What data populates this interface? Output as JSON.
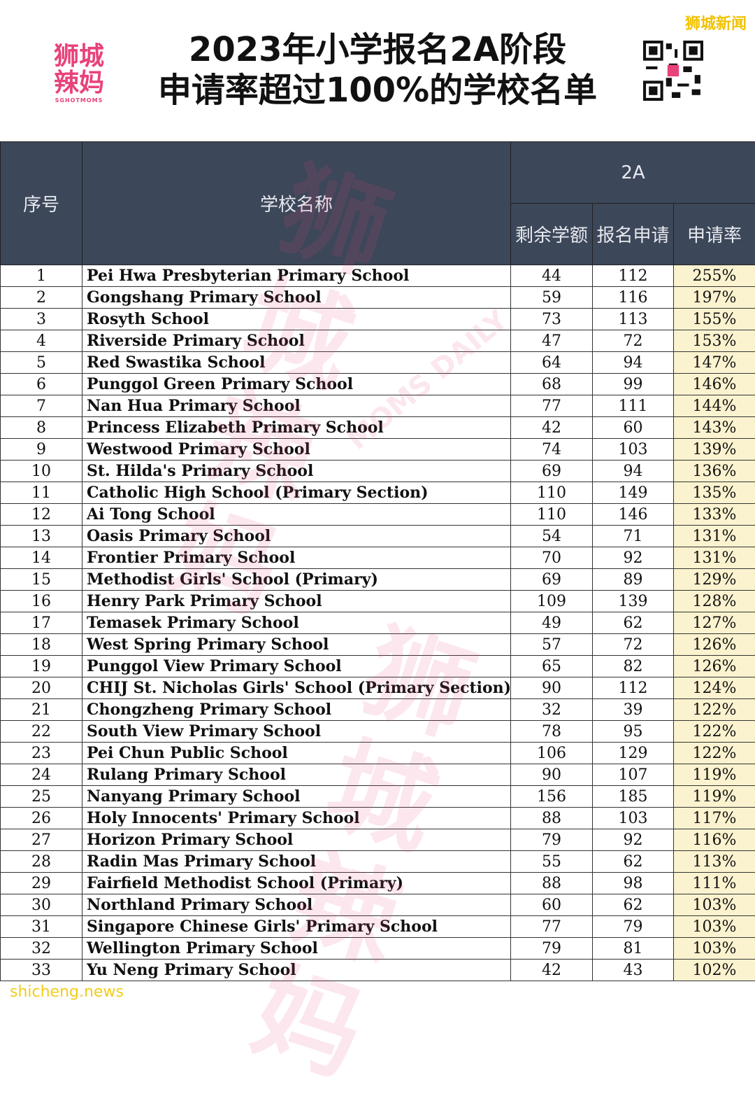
{
  "header": {
    "title_line1": "2023年小学报名2A阶段",
    "title_line2": "申请率超过100%的学校名单",
    "logo_line1": "狮城",
    "logo_line2": "辣妈",
    "logo_sub": "SGHOTMOMS",
    "corner_mark": "狮城新闻"
  },
  "table": {
    "columns": {
      "no": "序号",
      "name": "学校名称",
      "group": "2A",
      "quota": "剩余学额",
      "applicants": "报名申请",
      "rate": "申请率"
    },
    "rows": [
      [
        "1",
        "Pei Hwa Presbyterian Primary School",
        "44",
        "112",
        "255%"
      ],
      [
        "2",
        "Gongshang Primary School",
        "59",
        "116",
        "197%"
      ],
      [
        "3",
        "Rosyth School",
        "73",
        "113",
        "155%"
      ],
      [
        "4",
        "Riverside Primary School",
        "47",
        "72",
        "153%"
      ],
      [
        "5",
        "Red Swastika School",
        "64",
        "94",
        "147%"
      ],
      [
        "6",
        "Punggol Green Primary School",
        "68",
        "99",
        "146%"
      ],
      [
        "7",
        "Nan Hua Primary School",
        "77",
        "111",
        "144%"
      ],
      [
        "8",
        "Princess Elizabeth Primary School",
        "42",
        "60",
        "143%"
      ],
      [
        "9",
        "Westwood Primary School",
        "74",
        "103",
        "139%"
      ],
      [
        "10",
        "St. Hilda's Primary School",
        "69",
        "94",
        "136%"
      ],
      [
        "11",
        "Catholic High School (Primary Section)",
        "110",
        "149",
        "135%"
      ],
      [
        "12",
        "Ai Tong School",
        "110",
        "146",
        "133%"
      ],
      [
        "13",
        "Oasis Primary School",
        "54",
        "71",
        "131%"
      ],
      [
        "14",
        "Frontier Primary School",
        "70",
        "92",
        "131%"
      ],
      [
        "15",
        "Methodist Girls' School (Primary)",
        "69",
        "89",
        "129%"
      ],
      [
        "16",
        "Henry Park Primary School",
        "109",
        "139",
        "128%"
      ],
      [
        "17",
        "Temasek Primary School",
        "49",
        "62",
        "127%"
      ],
      [
        "18",
        "West Spring Primary School",
        "57",
        "72",
        "126%"
      ],
      [
        "19",
        "Punggol View Primary School",
        "65",
        "82",
        "126%"
      ],
      [
        "20",
        "CHIJ St. Nicholas Girls' School (Primary Section)",
        "90",
        "112",
        "124%"
      ],
      [
        "21",
        "Chongzheng Primary School",
        "32",
        "39",
        "122%"
      ],
      [
        "22",
        "South View Primary School",
        "78",
        "95",
        "122%"
      ],
      [
        "23",
        "Pei Chun Public School",
        "106",
        "129",
        "122%"
      ],
      [
        "24",
        "Rulang Primary School",
        "90",
        "107",
        "119%"
      ],
      [
        "25",
        "Nanyang Primary School",
        "156",
        "185",
        "119%"
      ],
      [
        "26",
        "Holy Innocents' Primary School",
        "88",
        "103",
        "117%"
      ],
      [
        "27",
        "Horizon Primary School",
        "79",
        "92",
        "116%"
      ],
      [
        "28",
        "Radin Mas Primary School",
        "55",
        "62",
        "113%"
      ],
      [
        "29",
        "Fairfield Methodist School (Primary)",
        "88",
        "98",
        "111%"
      ],
      [
        "30",
        "Northland Primary School",
        "60",
        "62",
        "103%"
      ],
      [
        "31",
        "Singapore Chinese Girls' Primary School",
        "77",
        "79",
        "103%"
      ],
      [
        "32",
        "Wellington Primary School",
        "79",
        "81",
        "103%"
      ],
      [
        "33",
        "Yu Neng Primary School",
        "42",
        "43",
        "102%"
      ]
    ]
  },
  "watermarks": {
    "big": "狮城辣妈",
    "side": "MOMS DAILY",
    "site": "shicheng.news"
  }
}
